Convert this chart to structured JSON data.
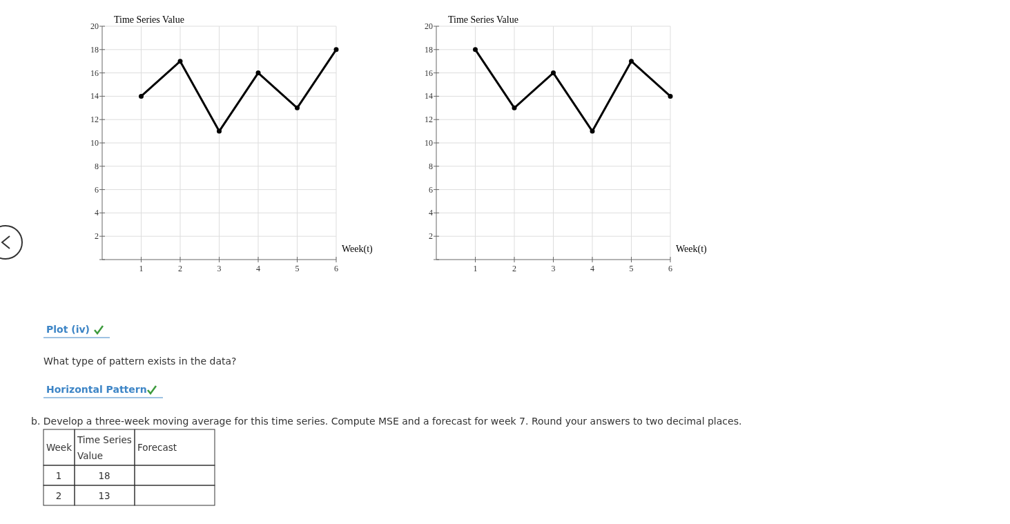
{
  "chart_data": [
    {
      "type": "line",
      "ylabel": "Time Series Value",
      "xlabel": "Week(t)",
      "x": [
        1,
        2,
        3,
        4,
        5,
        6
      ],
      "series": [
        {
          "color": "#000000",
          "values": [
            14,
            17,
            11,
            16,
            13,
            18
          ]
        }
      ],
      "xlim": [
        0,
        6
      ],
      "xticks": [
        1,
        2,
        3,
        4,
        5,
        6
      ],
      "ylim": [
        0,
        20
      ],
      "yticks": [
        {
          "value": 0,
          "label": null
        },
        2,
        4,
        6,
        8,
        10,
        12,
        14,
        16,
        18,
        20
      ],
      "grid": true,
      "marker": "circle",
      "line_style": "solid"
    },
    {
      "type": "line",
      "ylabel": "Time Series Value",
      "xlabel": "Week(t)",
      "x": [
        1,
        2,
        3,
        4,
        5,
        6
      ],
      "series": [
        {
          "color": "#000000",
          "values": [
            18,
            13,
            16,
            11,
            17,
            14
          ]
        }
      ],
      "xlim": [
        0,
        6
      ],
      "xticks": [
        1,
        2,
        3,
        4,
        5,
        6
      ],
      "ylim": [
        0,
        20
      ],
      "yticks": [
        {
          "value": 0,
          "label": null
        },
        2,
        4,
        6,
        8,
        10,
        12,
        14,
        16,
        18,
        20
      ],
      "grid": true,
      "marker": "circle",
      "line_style": "solid"
    },
    {
      "type": "other",
      "annotations": [
        "Plot (iv)",
        "What type of pattern exists in the data?",
        "Horizontal Pattern",
        "b. Develop a three-week moving average for this time series. Compute MSE and a forecast for week 7. Round your answers to two decimal places.",
        "Week",
        "Time Series Value",
        "Forecast",
        "1",
        "18",
        "2",
        "13"
      ]
    }
  ]
}
